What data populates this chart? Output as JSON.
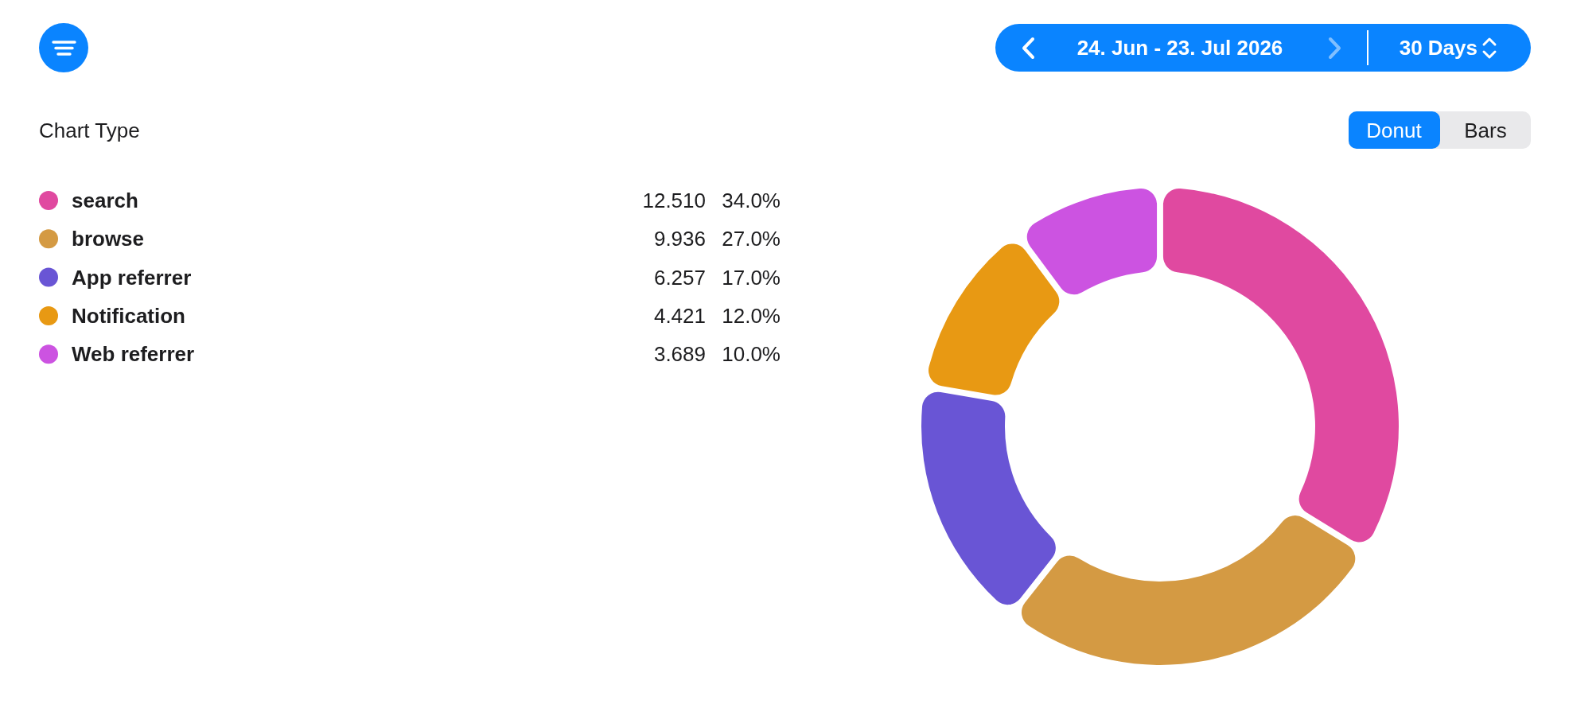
{
  "chart_data": {
    "type": "donut",
    "subtitle": "24. Jun - 23. Jul 2026",
    "categories": [
      "search",
      "browse",
      "App referrer",
      "Notification",
      "Web referrer"
    ],
    "values": [
      34.0,
      27.0,
      17.0,
      12.0,
      10.0
    ],
    "value_labels": [
      "34.0%",
      "27.0%",
      "17.0%",
      "12.0%",
      "10.0%"
    ],
    "colors": [
      "#e049a0",
      "#d49a43",
      "#6955d5",
      "#e89913",
      "#cc53e1"
    ],
    "legend": "left",
    "annotations": [
      "30 Days",
      "Chart Type",
      "Donut",
      "Bars",
      "12.510",
      "9.936",
      "6.257",
      "4.421",
      "3.689"
    ]
  }
}
